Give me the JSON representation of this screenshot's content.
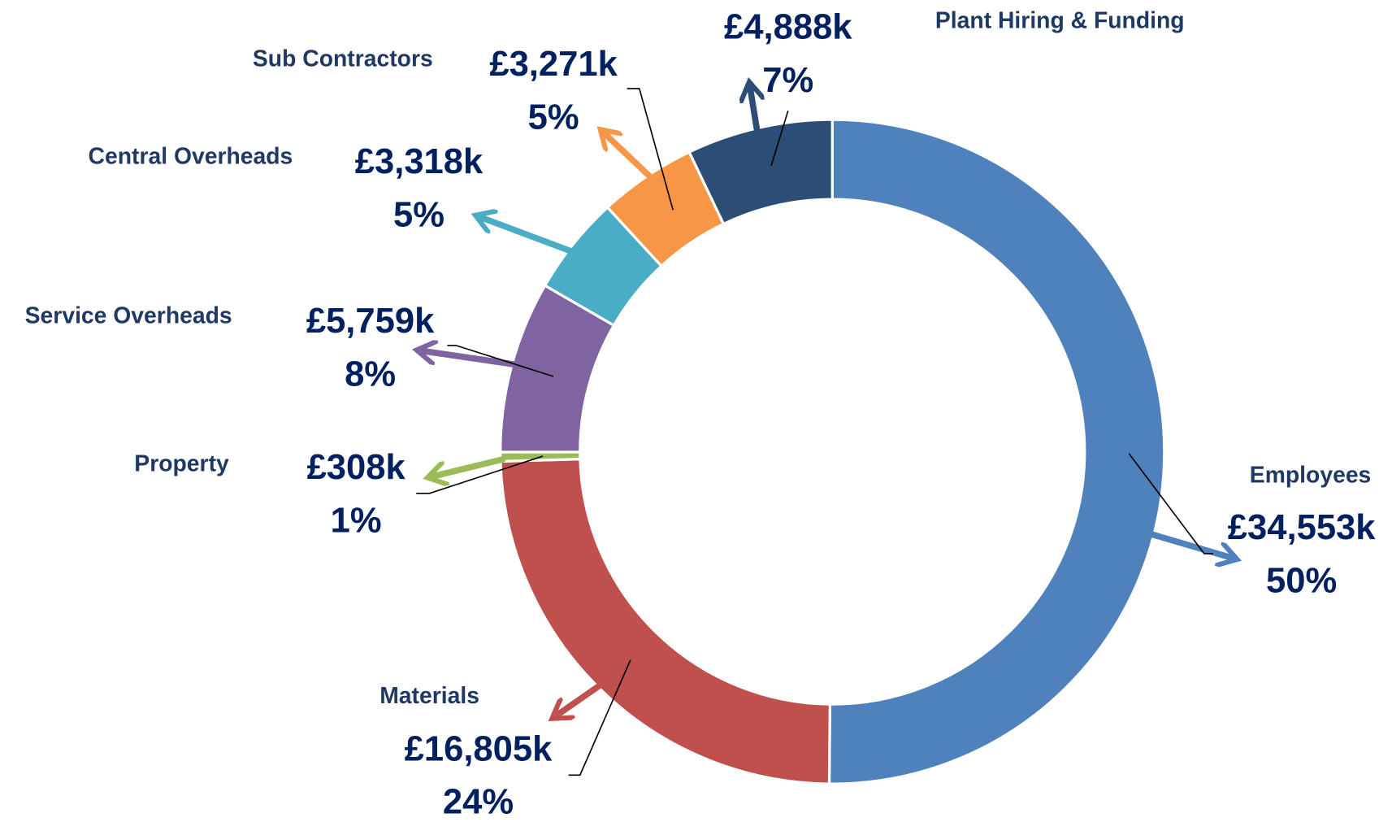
{
  "chart_data": {
    "type": "donut",
    "categories": [
      "Employees",
      "Materials",
      "Property",
      "Service Overheads",
      "Central Overheads",
      "Sub Contractors",
      "Plant Hiring & Funding"
    ],
    "values": [
      34553,
      16805,
      308,
      5759,
      3318,
      3271,
      4888
    ],
    "value_labels": [
      "£34,553k",
      "£16,805k",
      "£308k",
      "£5,759k",
      "£3,318k",
      "£3,271k",
      "£4,888k"
    ],
    "percents": [
      50,
      24,
      1,
      8,
      5,
      5,
      7
    ],
    "percent_labels": [
      "50%",
      "24%",
      "1%",
      "8%",
      "5%",
      "5%",
      "7%"
    ],
    "colors": [
      "#4f81bd",
      "#c0504d",
      "#9bbb59",
      "#8064a2",
      "#4bacc6",
      "#f79646",
      "#2c4d75"
    ]
  }
}
